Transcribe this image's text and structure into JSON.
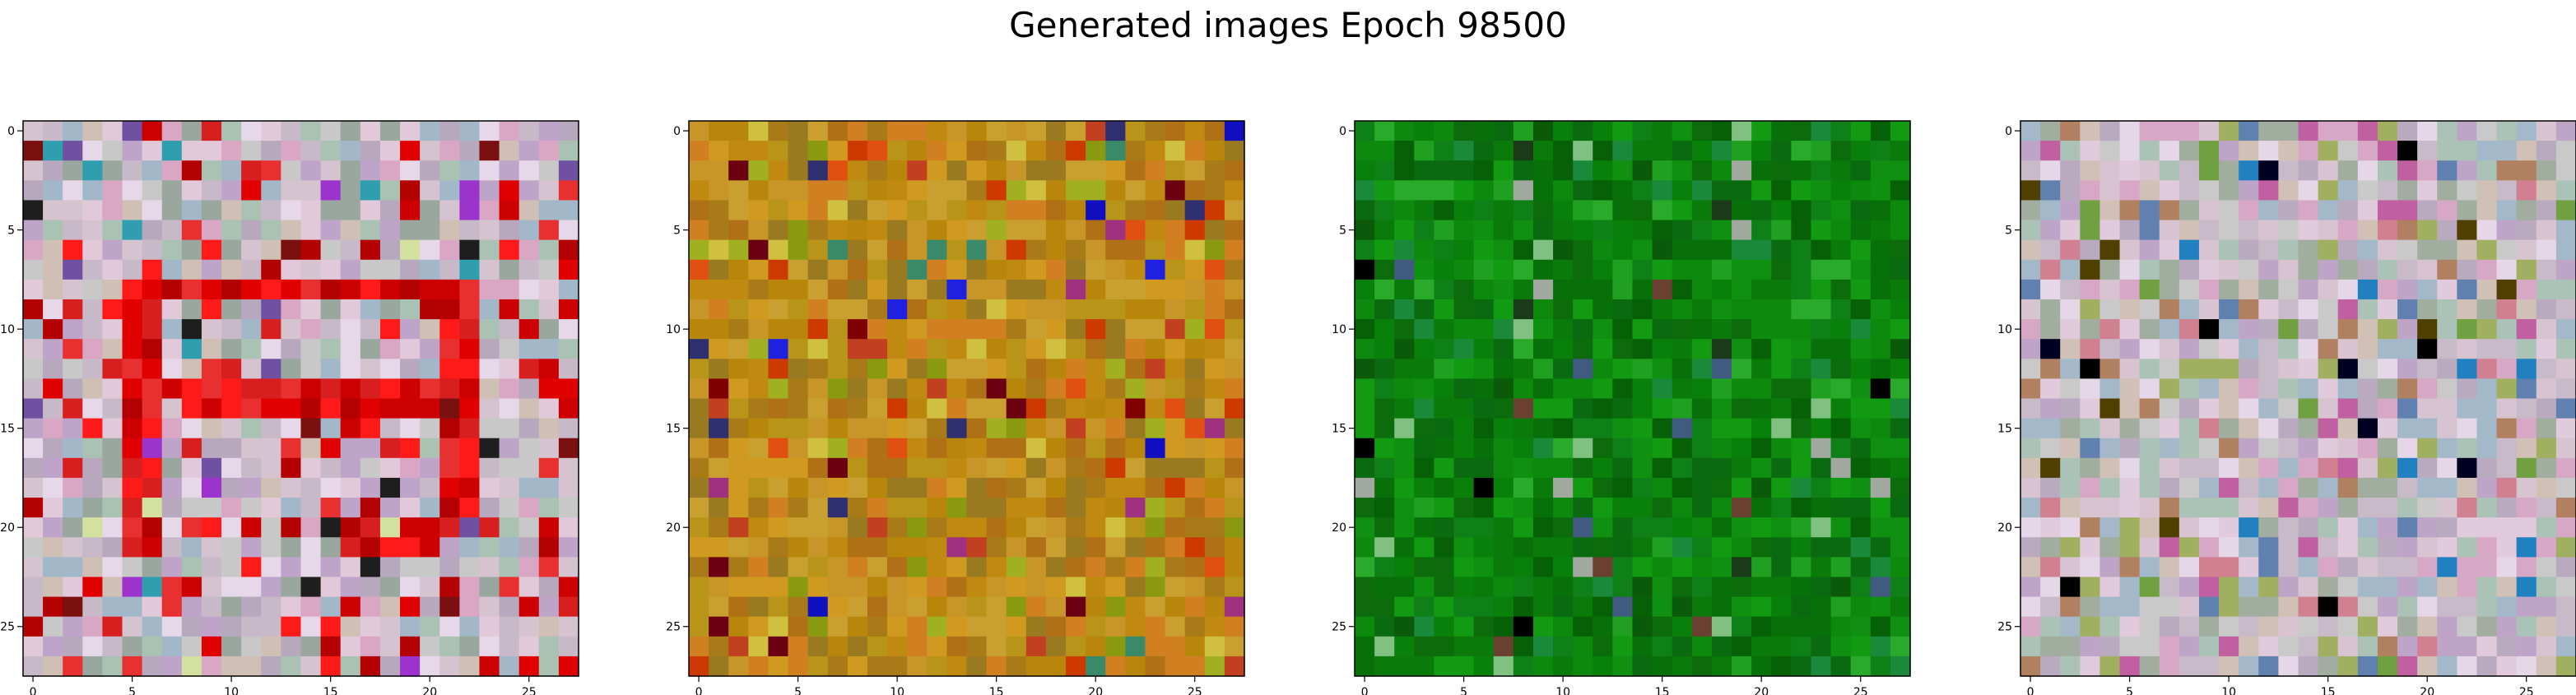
{
  "figure": {
    "title": "Generated images Epoch 98500"
  },
  "chart_data": {
    "type": "heatmap",
    "title": "Generated images Epoch 98500",
    "panel_count": 4,
    "grid_size": [
      28,
      28
    ],
    "xlim": [
      -0.5,
      27.5
    ],
    "ylim": [
      27.5,
      -0.5
    ],
    "x_ticks": [
      0,
      5,
      10,
      15,
      20,
      25
    ],
    "y_ticks": [
      0,
      5,
      10,
      15,
      20,
      25
    ],
    "y_axis_inverted": true,
    "grid": false,
    "panels": [
      {
        "name": "",
        "dominant_palette": "pastel",
        "colors": [
          "#c8b9c9",
          "#d6c3d0",
          "#b7a8be",
          "#c9c8c8",
          "#e2c9d9",
          "#9aa79f",
          "#d9a6c4",
          "#a9c2b4",
          "#cfbfb4",
          "#bfa4c9",
          "#e6d8e8",
          "#a2b8c8"
        ],
        "accent_colors": [
          "#e00000",
          "#cc0000",
          "#ff1a1a",
          "#b30000",
          "#e83030",
          "#d81f1f"
        ],
        "highlight_colors": [
          "#7a1010",
          "#9b33cc",
          "#2f9fb0",
          "#1e1e1e",
          "#7050a0",
          "#d4e0a0"
        ]
      },
      {
        "name": "",
        "dominant_palette": "ochre",
        "colors": [
          "#c08a10",
          "#b8860b",
          "#d09a20",
          "#a87a18",
          "#c89628",
          "#b07015",
          "#c9a030",
          "#d08020",
          "#9a7a20",
          "#b89418"
        ],
        "accent_colors": [
          "#cc3a00",
          "#e05010",
          "#8a9a10",
          "#a0b020",
          "#d0c040",
          "#c04020"
        ],
        "highlight_colors": [
          "#1010c0",
          "#2020e0",
          "#6a0010",
          "#3a8a6a",
          "#303070",
          "#800000",
          "#a03080"
        ]
      },
      {
        "name": "",
        "dominant_palette": "green",
        "colors": [
          "#0a7a0a",
          "#087008",
          "#0d8a0d",
          "#066006",
          "#109010",
          "#0a6a10",
          "#0f7f18",
          "#08800a",
          "#0c6c0c",
          "#129a12"
        ],
        "accent_colors": [
          "#20a020",
          "#2aaa2a",
          "#0a5a0a",
          "#1a8a3a"
        ],
        "highlight_colors": [
          "#000000",
          "#6a4030",
          "#a0a8a0",
          "#405a80",
          "#1a3a1a",
          "#80c080"
        ]
      },
      {
        "name": "",
        "dominant_palette": "pastel",
        "colors": [
          "#c9bac9",
          "#d7c4d0",
          "#b9aabf",
          "#cac9c9",
          "#e1cadb",
          "#a0ad9f",
          "#d7a8c6",
          "#aac3b6",
          "#d0c0b6",
          "#bea5c8",
          "#e5d7e7",
          "#a3b9c9"
        ],
        "accent_colors": [
          "#c060a0",
          "#b08060",
          "#6080b0",
          "#a0b060",
          "#d08090"
        ],
        "highlight_colors": [
          "#000000",
          "#000020",
          "#c02020",
          "#504000",
          "#2080c0",
          "#70a040"
        ]
      }
    ]
  }
}
